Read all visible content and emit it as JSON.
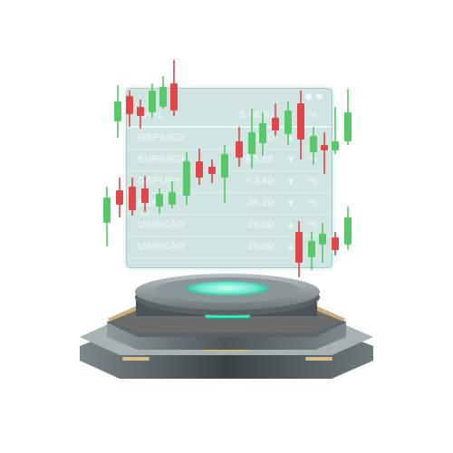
{
  "panel": {
    "rows": [
      {
        "symbol": "AAPL",
        "value": "$.46.80",
        "arrow": "▲",
        "pct": "%"
      },
      {
        "symbol": "GBP/USD",
        "value": "00.00",
        "arrow": "▲",
        "pct": "%"
      },
      {
        "symbol": "EUR/USD",
        "value": "$.3.88",
        "arrow": "▼",
        "pct": "%"
      },
      {
        "symbol": "GBP/JPY",
        "value": "3,3.40",
        "arrow": "▼",
        "pct": "%"
      },
      {
        "symbol": "EUR",
        "value": "35.20",
        "arrow": "▼",
        "pct": "%"
      },
      {
        "symbol": "USD/CAD",
        "value": "26.00",
        "arrow": "▲",
        "pct": "%"
      },
      {
        "symbol": "USD/CAD",
        "value": "20.00",
        "arrow": "▲",
        "pct": "%"
      }
    ]
  },
  "colors": {
    "bullish": "#58c86a",
    "bearish": "#e0474a",
    "glow": "#3fe0b8",
    "gold": "#cdb27f",
    "metal_dark": "#3d4447",
    "metal_light": "#7f8b8f"
  },
  "candles": [
    {
      "color": "bullish",
      "open": 0.62,
      "close": 0.7,
      "high": 0.75,
      "low": 0.56
    },
    {
      "color": "bearish",
      "open": 0.72,
      "close": 0.66,
      "high": 0.8,
      "low": 0.6
    },
    {
      "color": "bearish",
      "open": 0.68,
      "close": 0.64,
      "high": 0.72,
      "low": 0.6
    },
    {
      "color": "bullish",
      "open": 0.68,
      "close": 0.74,
      "high": 0.78,
      "low": 0.64
    },
    {
      "color": "bullish",
      "open": 0.66,
      "close": 0.7,
      "high": 0.72,
      "low": 0.6
    },
    {
      "color": "bearish",
      "open": 0.8,
      "close": 0.72,
      "high": 0.88,
      "low": 0.66
    }
  ]
}
